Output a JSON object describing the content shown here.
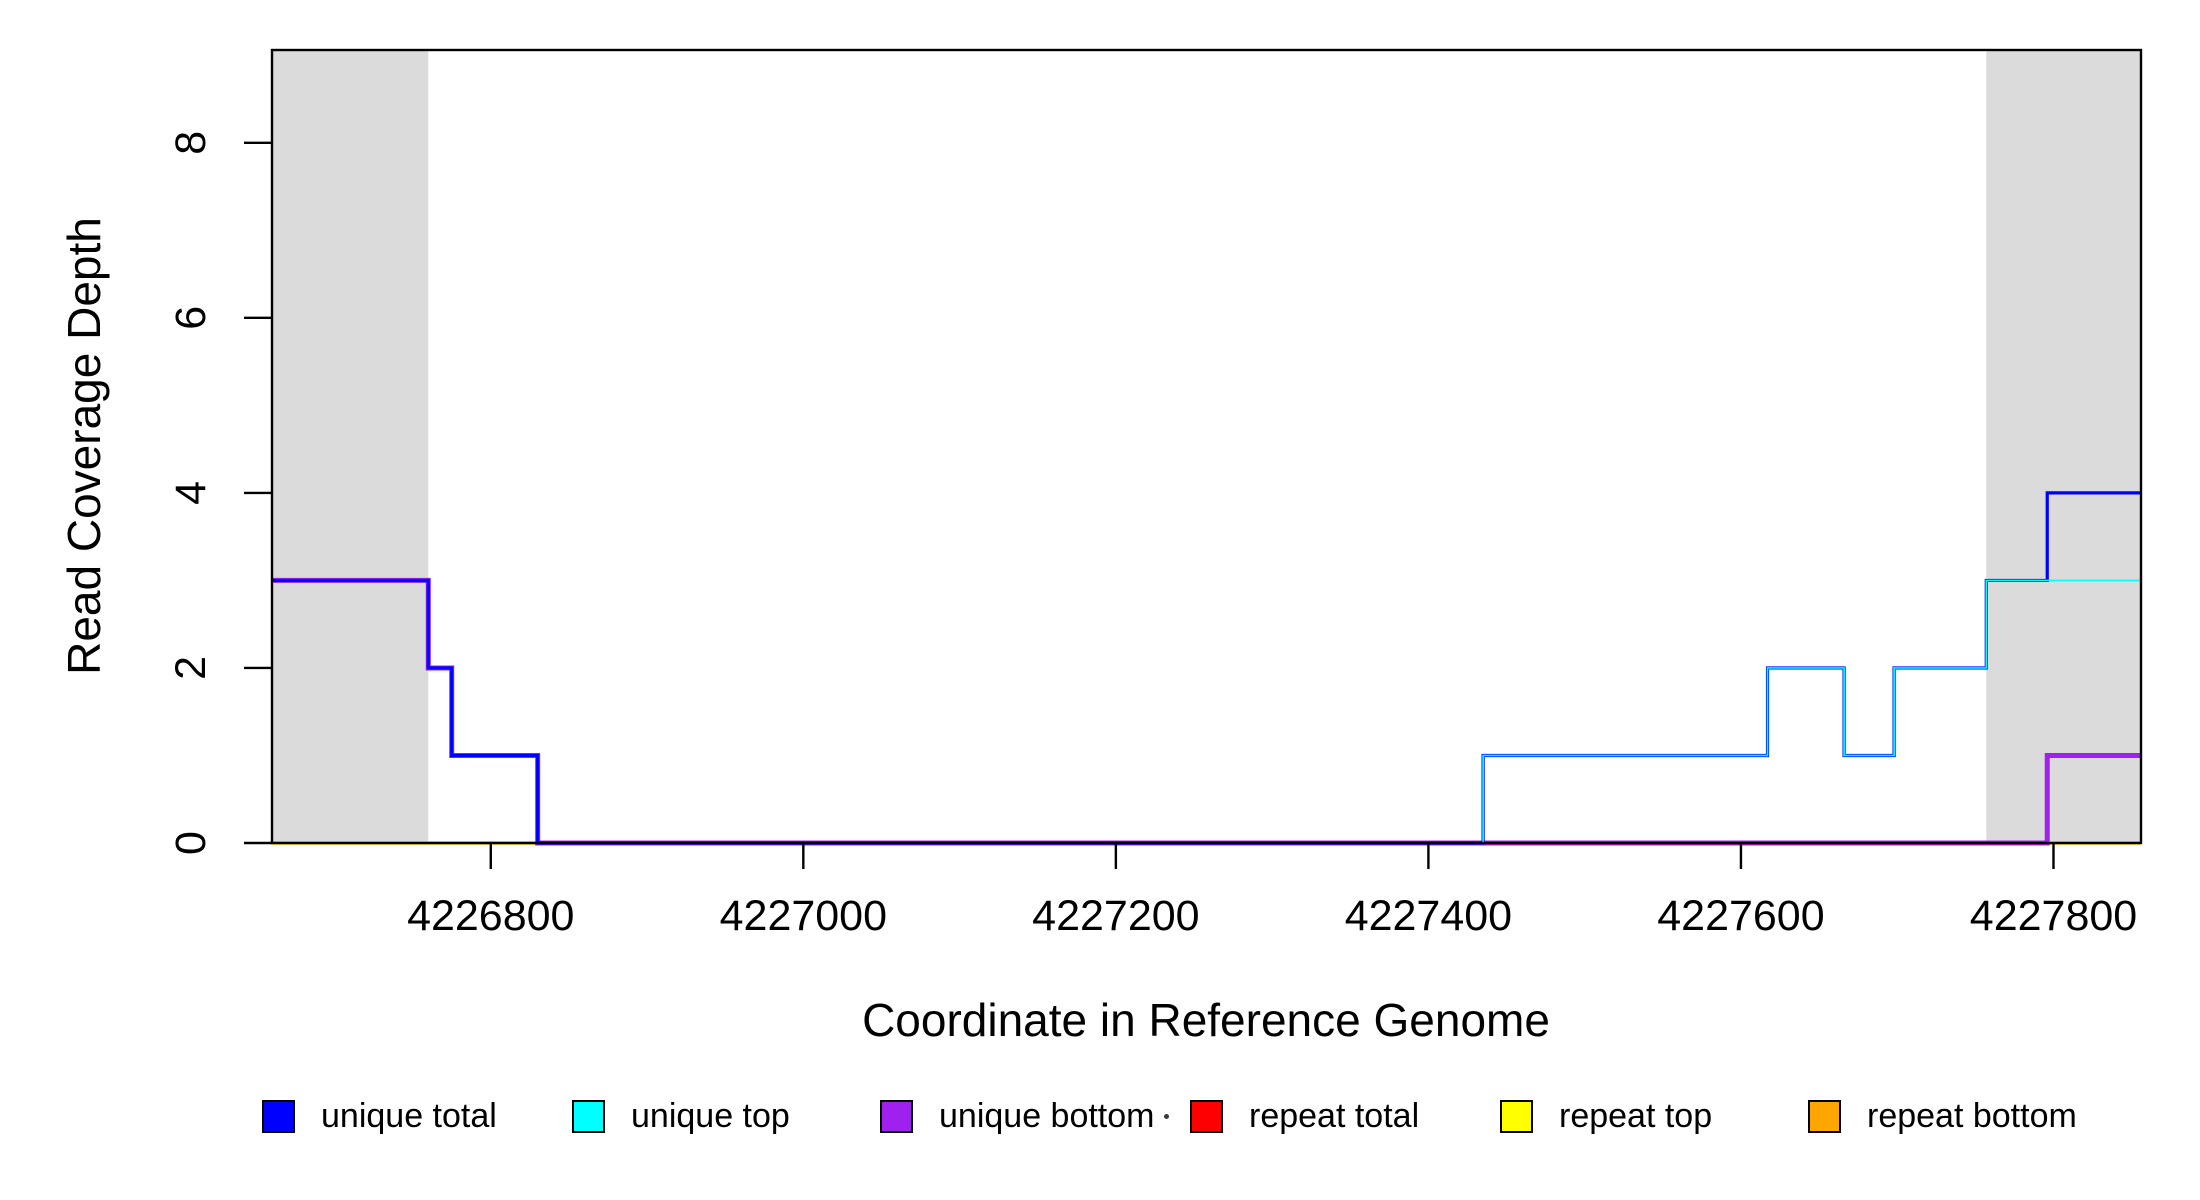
{
  "figure": {
    "x_axis_title": "Coordinate in Reference Genome",
    "y_axis_title": "Read Coverage Depth"
  },
  "chart_data": {
    "type": "line",
    "subtype": "step",
    "title": "",
    "xlabel": "Coordinate in Reference Genome",
    "ylabel": "Read Coverage Depth",
    "xlim": [
      4226660,
      4227856
    ],
    "ylim": [
      0,
      9.06
    ],
    "grid": false,
    "legend_position": "bottom",
    "x_ticks": {
      "values": [
        4226800,
        4227000,
        4227200,
        4227400,
        4227600,
        4227800
      ],
      "labels": [
        "4226800",
        "4227000",
        "4227200",
        "4227400",
        "4227600",
        "4227800"
      ]
    },
    "y_ticks": {
      "values": [
        0,
        2,
        4,
        6,
        8
      ],
      "labels": [
        "0",
        "2",
        "4",
        "6",
        "8"
      ]
    },
    "shaded_regions": [
      {
        "x_start": 4226660,
        "x_end": 4226760,
        "color": "#DBDBDB"
      },
      {
        "x_start": 4227757,
        "x_end": 4227856,
        "color": "#DBDBDB"
      }
    ],
    "series": [
      {
        "name": "unique total",
        "color": "#0000FF",
        "points": [
          [
            4226660,
            3
          ],
          [
            4226760,
            2
          ],
          [
            4226775,
            1
          ],
          [
            4226830,
            0
          ],
          [
            4227435,
            1
          ],
          [
            4227617,
            2
          ],
          [
            4227666,
            1
          ],
          [
            4227698,
            2
          ],
          [
            4227757,
            3
          ],
          [
            4227796,
            4
          ],
          [
            4227856,
            4
          ]
        ]
      },
      {
        "name": "unique top",
        "color": "#00FFFF",
        "points": [
          [
            4226660,
            0
          ],
          [
            4227435,
            1
          ],
          [
            4227617,
            2
          ],
          [
            4227666,
            1
          ],
          [
            4227698,
            2
          ],
          [
            4227757,
            3
          ],
          [
            4227856,
            3
          ]
        ]
      },
      {
        "name": "unique bottom",
        "color": "#A020F0",
        "points": [
          [
            4226660,
            3
          ],
          [
            4226760,
            2
          ],
          [
            4226775,
            1
          ],
          [
            4226830,
            0
          ],
          [
            4227796,
            1
          ],
          [
            4227856,
            1
          ]
        ]
      },
      {
        "name": "repeat total",
        "color": "#FF0000",
        "points": [
          [
            4226660,
            0
          ],
          [
            4227856,
            0
          ]
        ]
      },
      {
        "name": "repeat top",
        "color": "#FFFF00",
        "points": [
          [
            4226660,
            0
          ],
          [
            4227856,
            0
          ]
        ]
      },
      {
        "name": "repeat bottom",
        "color": "#FFA500",
        "points": [
          [
            4226660,
            0
          ],
          [
            4227856,
            0
          ]
        ]
      }
    ]
  },
  "legend": {
    "items": [
      {
        "label": "unique total",
        "color": "#0000FF"
      },
      {
        "label": "unique top",
        "color": "#00FFFF"
      },
      {
        "label": "unique bottom",
        "color": "#A020F0"
      },
      {
        "label": "repeat total",
        "color": "#FF0000"
      },
      {
        "label": "repeat top",
        "color": "#FFFF00"
      },
      {
        "label": "repeat bottom",
        "color": "#FFA500"
      }
    ]
  },
  "colors": {
    "background": "#FFFFFF",
    "axis": "#000000",
    "masked_region": "#DBDBDB"
  }
}
